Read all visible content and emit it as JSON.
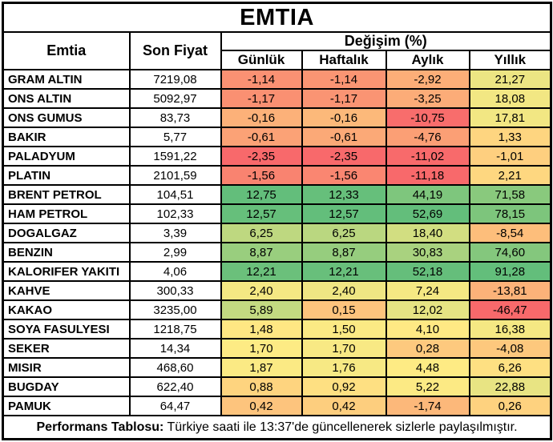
{
  "chart_data": {
    "type": "table",
    "title": "EMTIA",
    "col_emtia": "Emtia",
    "col_price": "Son Fiyat",
    "col_group": "Değişim (%)",
    "sub_columns": [
      "Günlük",
      "Haftalık",
      "Aylık",
      "Yıllık"
    ],
    "rows": [
      {
        "name": "GRAM ALTIN",
        "price": "7219,08",
        "changes": [
          "-1,14",
          "-1,14",
          "-2,92",
          "21,27"
        ]
      },
      {
        "name": "ONS ALTIN",
        "price": "5092,97",
        "changes": [
          "-1,17",
          "-1,17",
          "-3,25",
          "18,08"
        ]
      },
      {
        "name": "ONS GUMUS",
        "price": "83,73",
        "changes": [
          "-0,16",
          "-0,16",
          "-10,75",
          "17,81"
        ]
      },
      {
        "name": "BAKIR",
        "price": "5,77",
        "changes": [
          "-0,61",
          "-0,61",
          "-4,76",
          "1,33"
        ]
      },
      {
        "name": "PALADYUM",
        "price": "1591,22",
        "changes": [
          "-2,35",
          "-2,35",
          "-11,02",
          "-1,01"
        ]
      },
      {
        "name": "PLATIN",
        "price": "2101,59",
        "changes": [
          "-1,56",
          "-1,56",
          "-11,18",
          "2,21"
        ]
      },
      {
        "name": "BRENT PETROL",
        "price": "104,51",
        "changes": [
          "12,75",
          "12,33",
          "44,19",
          "71,58"
        ]
      },
      {
        "name": "HAM PETROL",
        "price": "102,33",
        "changes": [
          "12,57",
          "12,57",
          "52,69",
          "78,15"
        ]
      },
      {
        "name": "DOGALGAZ",
        "price": "3,39",
        "changes": [
          "6,25",
          "6,25",
          "18,40",
          "-8,54"
        ]
      },
      {
        "name": "BENZIN",
        "price": "2,99",
        "changes": [
          "8,87",
          "8,87",
          "30,83",
          "74,60"
        ]
      },
      {
        "name": "KALORIFER YAKITI",
        "price": "4,06",
        "changes": [
          "12,21",
          "12,21",
          "52,18",
          "91,28"
        ]
      },
      {
        "name": "KAHVE",
        "price": "300,33",
        "changes": [
          "2,40",
          "2,40",
          "7,24",
          "-13,81"
        ]
      },
      {
        "name": "KAKAO",
        "price": "3235,00",
        "changes": [
          "5,89",
          "0,15",
          "12,02",
          "-46,47"
        ]
      },
      {
        "name": "SOYA FASULYESI",
        "price": "1218,75",
        "changes": [
          "1,48",
          "1,50",
          "4,10",
          "16,38"
        ]
      },
      {
        "name": "SEKER",
        "price": "14,34",
        "changes": [
          "1,70",
          "1,70",
          "0,28",
          "-4,08"
        ]
      },
      {
        "name": "MISIR",
        "price": "468,60",
        "changes": [
          "1,87",
          "1,76",
          "4,48",
          "6,26"
        ]
      },
      {
        "name": "BUGDAY",
        "price": "622,40",
        "changes": [
          "0,88",
          "0,92",
          "5,22",
          "22,88"
        ]
      },
      {
        "name": "PAMUK",
        "price": "64,47",
        "changes": [
          "0,42",
          "0,42",
          "-1,74",
          "0,26"
        ]
      }
    ],
    "layout_hints": {
      "heatmap_scope": "per-column",
      "heatmap_midpoint": "median"
    }
  },
  "colors": {
    "scale_min": "#F8696B",
    "scale_mid": "#FFEB84",
    "scale_max": "#63BE7B",
    "border": "#000000",
    "background": "#FFFFFF"
  },
  "footer": {
    "bold_label": "Performans Tablosu:",
    "text": "Türkiye saati ile 13:37'de güncellenerek sizlerle paylaşılmıştır."
  }
}
